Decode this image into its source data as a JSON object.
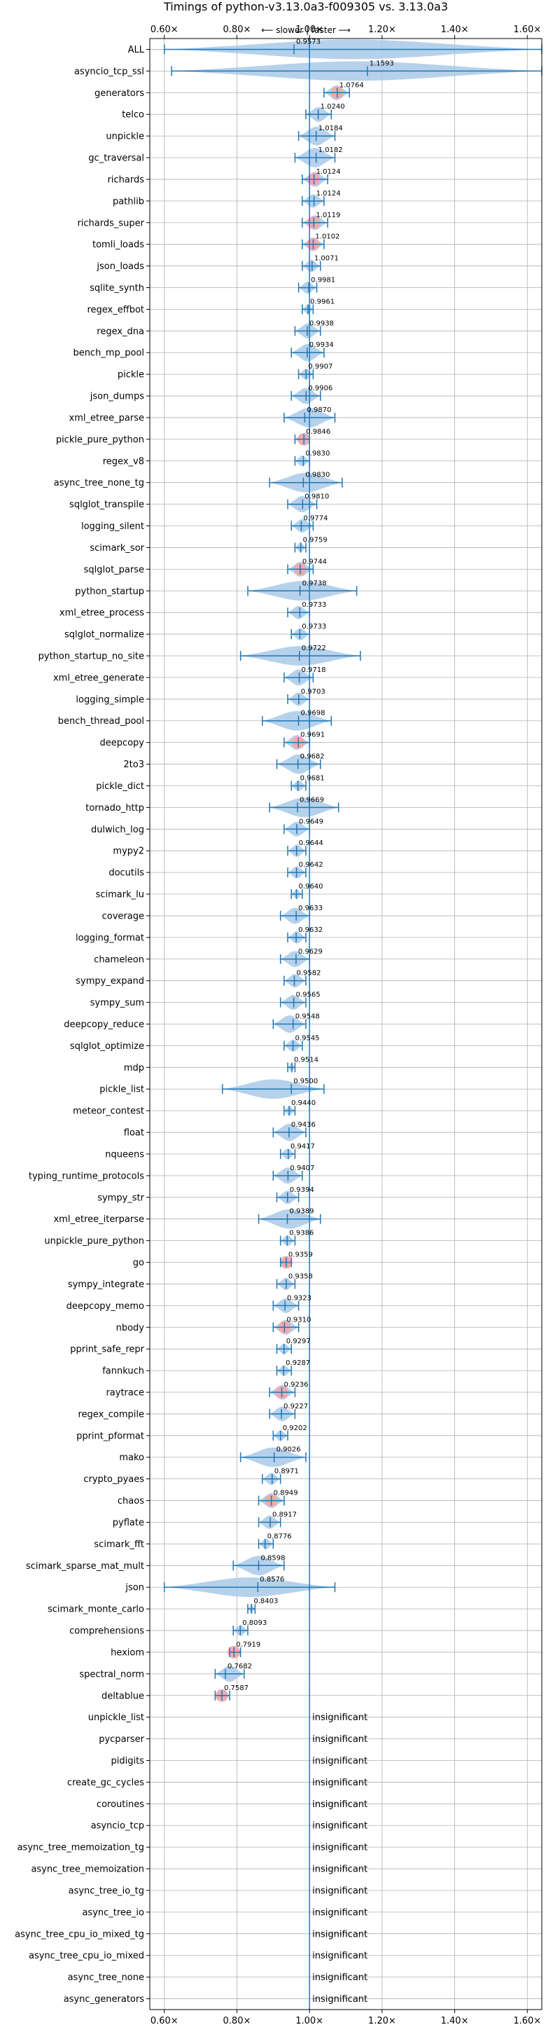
{
  "colors": {
    "accent": "#1f77b4",
    "violin": "#a9c9e8",
    "significant": "#f4a6a8",
    "grid": "#b0b0b0",
    "axis": "#000000"
  },
  "chart_data": {
    "type": "violin",
    "title": "Timings of python-v3.13.0a3-f009305 vs. 3.13.0a3",
    "subtitle": "⟵ slower | faster ⟶",
    "xlim": [
      0.56,
      1.64
    ],
    "xticks": [
      0.6,
      0.8,
      1.0,
      1.2,
      1.4,
      1.6
    ],
    "xtick_labels": [
      "0.60×",
      "0.80×",
      "1.00×",
      "1.20×",
      "1.40×",
      "1.60×"
    ],
    "reference_line": 1.0,
    "grid": true,
    "insignificant_label": "insignificant",
    "benchmarks": [
      {
        "name": "ALL",
        "value": 0.9573,
        "label": "0.9573",
        "min": 0.6,
        "max": 1.64,
        "significant": false
      },
      {
        "name": "asyncio_tcp_ssl",
        "value": 1.1593,
        "label": "1.1593",
        "min": 0.62,
        "max": 1.64,
        "significant": false
      },
      {
        "name": "generators",
        "value": 1.0764,
        "label": "1.0764",
        "min": 1.04,
        "max": 1.11,
        "significant": true
      },
      {
        "name": "telco",
        "value": 1.024,
        "label": "1.0240",
        "min": 0.99,
        "max": 1.06,
        "significant": false
      },
      {
        "name": "unpickle",
        "value": 1.0184,
        "label": "1.0184",
        "min": 0.97,
        "max": 1.07,
        "significant": false
      },
      {
        "name": "gc_traversal",
        "value": 1.0182,
        "label": "1.0182",
        "min": 0.96,
        "max": 1.07,
        "significant": false
      },
      {
        "name": "richards",
        "value": 1.0124,
        "label": "1.0124",
        "min": 0.98,
        "max": 1.05,
        "significant": true
      },
      {
        "name": "pathlib",
        "value": 1.0124,
        "label": "1.0124",
        "min": 0.98,
        "max": 1.04,
        "significant": false
      },
      {
        "name": "richards_super",
        "value": 1.0119,
        "label": "1.0119",
        "min": 0.98,
        "max": 1.05,
        "significant": true
      },
      {
        "name": "tomli_loads",
        "value": 1.0102,
        "label": "1.0102",
        "min": 0.98,
        "max": 1.04,
        "significant": true
      },
      {
        "name": "json_loads",
        "value": 1.0071,
        "label": "1.0071",
        "min": 0.98,
        "max": 1.03,
        "significant": false
      },
      {
        "name": "sqlite_synth",
        "value": 0.9981,
        "label": "0.9981",
        "min": 0.97,
        "max": 1.02,
        "significant": false
      },
      {
        "name": "regex_effbot",
        "value": 0.9961,
        "label": "0.9961",
        "min": 0.98,
        "max": 1.01,
        "significant": false
      },
      {
        "name": "regex_dna",
        "value": 0.9938,
        "label": "0.9938",
        "min": 0.96,
        "max": 1.03,
        "significant": false
      },
      {
        "name": "bench_mp_pool",
        "value": 0.9934,
        "label": "0.9934",
        "min": 0.95,
        "max": 1.04,
        "significant": false
      },
      {
        "name": "pickle",
        "value": 0.9907,
        "label": "0.9907",
        "min": 0.97,
        "max": 1.01,
        "significant": false
      },
      {
        "name": "json_dumps",
        "value": 0.9906,
        "label": "0.9906",
        "min": 0.95,
        "max": 1.03,
        "significant": false
      },
      {
        "name": "xml_etree_parse",
        "value": 0.987,
        "label": "0.9870",
        "min": 0.93,
        "max": 1.07,
        "significant": false
      },
      {
        "name": "pickle_pure_python",
        "value": 0.9846,
        "label": "0.9846",
        "min": 0.96,
        "max": 1.0,
        "significant": true
      },
      {
        "name": "regex_v8",
        "value": 0.983,
        "label": "0.9830",
        "min": 0.96,
        "max": 1.0,
        "significant": false
      },
      {
        "name": "async_tree_none_tg",
        "value": 0.983,
        "label": "0.9830",
        "min": 0.89,
        "max": 1.09,
        "significant": false
      },
      {
        "name": "sqlglot_transpile",
        "value": 0.981,
        "label": "0.9810",
        "min": 0.94,
        "max": 1.02,
        "significant": false
      },
      {
        "name": "logging_silent",
        "value": 0.9774,
        "label": "0.9774",
        "min": 0.95,
        "max": 1.01,
        "significant": false
      },
      {
        "name": "scimark_sor",
        "value": 0.9759,
        "label": "0.9759",
        "min": 0.96,
        "max": 0.99,
        "significant": false
      },
      {
        "name": "sqlglot_parse",
        "value": 0.9744,
        "label": "0.9744",
        "min": 0.94,
        "max": 1.01,
        "significant": true
      },
      {
        "name": "python_startup",
        "value": 0.9738,
        "label": "0.9738",
        "min": 0.83,
        "max": 1.13,
        "significant": false
      },
      {
        "name": "xml_etree_process",
        "value": 0.9733,
        "label": "0.9733",
        "min": 0.94,
        "max": 1.0,
        "significant": false
      },
      {
        "name": "sqlglot_normalize",
        "value": 0.9733,
        "label": "0.9733",
        "min": 0.95,
        "max": 1.0,
        "significant": false
      },
      {
        "name": "python_startup_no_site",
        "value": 0.9722,
        "label": "0.9722",
        "min": 0.81,
        "max": 1.14,
        "significant": false
      },
      {
        "name": "xml_etree_generate",
        "value": 0.9718,
        "label": "0.9718",
        "min": 0.93,
        "max": 1.01,
        "significant": false
      },
      {
        "name": "logging_simple",
        "value": 0.9703,
        "label": "0.9703",
        "min": 0.94,
        "max": 1.0,
        "significant": false
      },
      {
        "name": "bench_thread_pool",
        "value": 0.9698,
        "label": "0.9698",
        "min": 0.87,
        "max": 1.06,
        "significant": false
      },
      {
        "name": "deepcopy",
        "value": 0.9691,
        "label": "0.9691",
        "min": 0.93,
        "max": 1.0,
        "significant": true
      },
      {
        "name": "2to3",
        "value": 0.9682,
        "label": "0.9682",
        "min": 0.91,
        "max": 1.03,
        "significant": false
      },
      {
        "name": "pickle_dict",
        "value": 0.9681,
        "label": "0.9681",
        "min": 0.95,
        "max": 0.99,
        "significant": false
      },
      {
        "name": "tornado_http",
        "value": 0.9669,
        "label": "0.9669",
        "min": 0.89,
        "max": 1.08,
        "significant": false
      },
      {
        "name": "dulwich_log",
        "value": 0.9649,
        "label": "0.9649",
        "min": 0.93,
        "max": 1.0,
        "significant": false
      },
      {
        "name": "mypy2",
        "value": 0.9644,
        "label": "0.9644",
        "min": 0.94,
        "max": 0.99,
        "significant": false
      },
      {
        "name": "docutils",
        "value": 0.9642,
        "label": "0.9642",
        "min": 0.94,
        "max": 0.99,
        "significant": false
      },
      {
        "name": "scimark_lu",
        "value": 0.964,
        "label": "0.9640",
        "min": 0.95,
        "max": 0.98,
        "significant": false
      },
      {
        "name": "coverage",
        "value": 0.9633,
        "label": "0.9633",
        "min": 0.92,
        "max": 1.0,
        "significant": false
      },
      {
        "name": "logging_format",
        "value": 0.9632,
        "label": "0.9632",
        "min": 0.94,
        "max": 0.99,
        "significant": false
      },
      {
        "name": "chameleon",
        "value": 0.9629,
        "label": "0.9629",
        "min": 0.92,
        "max": 1.0,
        "significant": false
      },
      {
        "name": "sympy_expand",
        "value": 0.9582,
        "label": "0.9582",
        "min": 0.93,
        "max": 0.99,
        "significant": false
      },
      {
        "name": "sympy_sum",
        "value": 0.9565,
        "label": "0.9565",
        "min": 0.92,
        "max": 0.99,
        "significant": false
      },
      {
        "name": "deepcopy_reduce",
        "value": 0.9548,
        "label": "0.9548",
        "min": 0.9,
        "max": 0.99,
        "significant": false
      },
      {
        "name": "sqlglot_optimize",
        "value": 0.9545,
        "label": "0.9545",
        "min": 0.93,
        "max": 0.98,
        "significant": false
      },
      {
        "name": "mdp",
        "value": 0.9514,
        "label": "0.9514",
        "min": 0.94,
        "max": 0.96,
        "significant": false
      },
      {
        "name": "pickle_list",
        "value": 0.95,
        "label": "0.9500",
        "min": 0.76,
        "max": 1.04,
        "significant": false
      },
      {
        "name": "meteor_contest",
        "value": 0.944,
        "label": "0.9440",
        "min": 0.93,
        "max": 0.96,
        "significant": false
      },
      {
        "name": "float",
        "value": 0.9436,
        "label": "0.9436",
        "min": 0.9,
        "max": 0.99,
        "significant": false
      },
      {
        "name": "nqueens",
        "value": 0.9417,
        "label": "0.9417",
        "min": 0.92,
        "max": 0.96,
        "significant": false
      },
      {
        "name": "typing_runtime_protocols",
        "value": 0.9407,
        "label": "0.9407",
        "min": 0.9,
        "max": 0.98,
        "significant": false
      },
      {
        "name": "sympy_str",
        "value": 0.9394,
        "label": "0.9394",
        "min": 0.91,
        "max": 0.97,
        "significant": false
      },
      {
        "name": "xml_etree_iterparse",
        "value": 0.9389,
        "label": "0.9389",
        "min": 0.86,
        "max": 1.03,
        "significant": false
      },
      {
        "name": "unpickle_pure_python",
        "value": 0.9386,
        "label": "0.9386",
        "min": 0.92,
        "max": 0.96,
        "significant": false
      },
      {
        "name": "go",
        "value": 0.9359,
        "label": "0.9359",
        "min": 0.92,
        "max": 0.95,
        "significant": true
      },
      {
        "name": "sympy_integrate",
        "value": 0.9358,
        "label": "0.9358",
        "min": 0.91,
        "max": 0.96,
        "significant": false
      },
      {
        "name": "deepcopy_memo",
        "value": 0.9323,
        "label": "0.9323",
        "min": 0.9,
        "max": 0.97,
        "significant": false
      },
      {
        "name": "nbody",
        "value": 0.931,
        "label": "0.9310",
        "min": 0.9,
        "max": 0.97,
        "significant": true
      },
      {
        "name": "pprint_safe_repr",
        "value": 0.9297,
        "label": "0.9297",
        "min": 0.91,
        "max": 0.95,
        "significant": false
      },
      {
        "name": "fannkuch",
        "value": 0.9287,
        "label": "0.9287",
        "min": 0.91,
        "max": 0.95,
        "significant": false
      },
      {
        "name": "raytrace",
        "value": 0.9236,
        "label": "0.9236",
        "min": 0.89,
        "max": 0.96,
        "significant": true
      },
      {
        "name": "regex_compile",
        "value": 0.9227,
        "label": "0.9227",
        "min": 0.89,
        "max": 0.96,
        "significant": false
      },
      {
        "name": "pprint_pformat",
        "value": 0.9202,
        "label": "0.9202",
        "min": 0.9,
        "max": 0.94,
        "significant": false
      },
      {
        "name": "mako",
        "value": 0.9026,
        "label": "0.9026",
        "min": 0.81,
        "max": 0.99,
        "significant": false
      },
      {
        "name": "crypto_pyaes",
        "value": 0.8971,
        "label": "0.8971",
        "min": 0.87,
        "max": 0.92,
        "significant": false
      },
      {
        "name": "chaos",
        "value": 0.8949,
        "label": "0.8949",
        "min": 0.86,
        "max": 0.93,
        "significant": true
      },
      {
        "name": "pyflate",
        "value": 0.8917,
        "label": "0.8917",
        "min": 0.86,
        "max": 0.92,
        "significant": false
      },
      {
        "name": "scimark_fft",
        "value": 0.8776,
        "label": "0.8776",
        "min": 0.86,
        "max": 0.9,
        "significant": false
      },
      {
        "name": "scimark_sparse_mat_mult",
        "value": 0.8598,
        "label": "0.8598",
        "min": 0.79,
        "max": 0.93,
        "significant": false
      },
      {
        "name": "json",
        "value": 0.8576,
        "label": "0.8576",
        "min": 0.6,
        "max": 1.07,
        "significant": false
      },
      {
        "name": "scimark_monte_carlo",
        "value": 0.8403,
        "label": "0.8403",
        "min": 0.83,
        "max": 0.85,
        "significant": false
      },
      {
        "name": "comprehensions",
        "value": 0.8093,
        "label": "0.8093",
        "min": 0.79,
        "max": 0.83,
        "significant": false
      },
      {
        "name": "hexiom",
        "value": 0.7919,
        "label": "0.7919",
        "min": 0.78,
        "max": 0.81,
        "significant": true
      },
      {
        "name": "spectral_norm",
        "value": 0.7682,
        "label": "0.7682",
        "min": 0.74,
        "max": 0.82,
        "significant": false
      },
      {
        "name": "deltablue",
        "value": 0.7587,
        "label": "0.7587",
        "min": 0.74,
        "max": 0.78,
        "significant": true
      },
      {
        "name": "unpickle_list",
        "insignificant": true
      },
      {
        "name": "pycparser",
        "insignificant": true
      },
      {
        "name": "pidigits",
        "insignificant": true
      },
      {
        "name": "create_gc_cycles",
        "insignificant": true
      },
      {
        "name": "coroutines",
        "insignificant": true
      },
      {
        "name": "asyncio_tcp",
        "insignificant": true
      },
      {
        "name": "async_tree_memoization_tg",
        "insignificant": true
      },
      {
        "name": "async_tree_memoization",
        "insignificant": true
      },
      {
        "name": "async_tree_io_tg",
        "insignificant": true
      },
      {
        "name": "async_tree_io",
        "insignificant": true
      },
      {
        "name": "async_tree_cpu_io_mixed_tg",
        "insignificant": true
      },
      {
        "name": "async_tree_cpu_io_mixed",
        "insignificant": true
      },
      {
        "name": "async_tree_none",
        "insignificant": true
      },
      {
        "name": "async_generators",
        "insignificant": true
      }
    ]
  }
}
